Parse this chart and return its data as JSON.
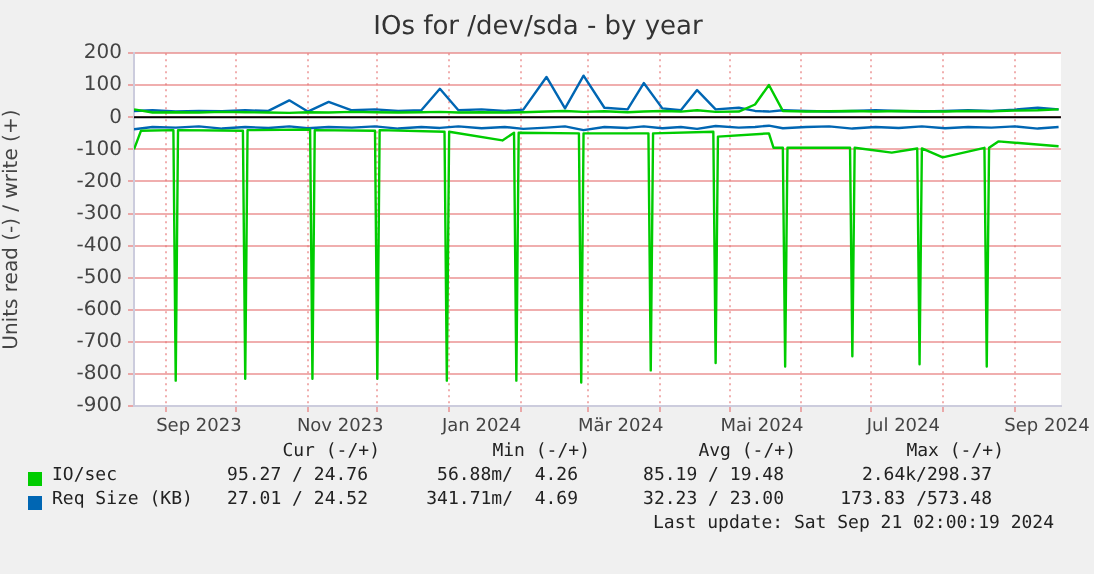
{
  "chart_data": {
    "type": "line",
    "title": "IOs for /dev/sda - by year",
    "ylabel": "Units read (-) / write (+)",
    "x": [
      "2023-08-18",
      "2023-08-26",
      "2023-09-05",
      "2023-09-15",
      "2023-09-25",
      "2023-10-05",
      "2023-10-15",
      "2023-10-24",
      "2023-11-01",
      "2023-11-10",
      "2023-11-20",
      "2023-11-30",
      "2023-12-10",
      "2023-12-20",
      "2023-12-28",
      "2024-01-05",
      "2024-01-15",
      "2024-01-25",
      "2024-02-02",
      "2024-02-12",
      "2024-02-20",
      "2024-02-28",
      "2024-03-08",
      "2024-03-18",
      "2024-03-25",
      "2024-04-02",
      "2024-04-10",
      "2024-04-17",
      "2024-04-25",
      "2024-05-05",
      "2024-05-12",
      "2024-05-18",
      "2024-05-24",
      "2024-06-03",
      "2024-06-13",
      "2024-06-23",
      "2024-07-03",
      "2024-07-13",
      "2024-07-23",
      "2024-08-02",
      "2024-08-12",
      "2024-08-22",
      "2024-09-01",
      "2024-09-11",
      "2024-09-20"
    ],
    "series": [
      {
        "name": "IO/sec",
        "color": "#00cc00",
        "values": [
          25,
          15,
          16,
          15,
          17,
          16,
          15,
          14,
          16,
          15,
          17,
          16,
          15,
          16,
          17,
          15,
          16,
          15,
          16,
          18,
          20,
          17,
          19,
          16,
          18,
          20,
          18,
          22,
          17,
          18,
          40,
          101,
          20,
          18,
          19,
          20,
          18,
          20,
          19,
          18,
          20,
          19,
          21,
          22,
          25
        ]
      },
      {
        "color": "#00cc00",
        "x": [
          "2023-08-18",
          "2023-08-21",
          "2023-09-04",
          "2023-09-05",
          "2023-09-06",
          "2023-10-04",
          "2023-10-05",
          "2023-10-06",
          "2023-11-02",
          "2023-11-03",
          "2023-11-04",
          "2023-11-30",
          "2023-12-01",
          "2023-12-02",
          "2023-12-30",
          "2023-12-31",
          "2024-01-01",
          "2024-01-24",
          "2024-01-29",
          "2024-01-30",
          "2024-01-31",
          "2024-02-26",
          "2024-02-27",
          "2024-02-28",
          "2024-03-27",
          "2024-03-28",
          "2024-03-29",
          "2024-04-24",
          "2024-04-25",
          "2024-04-26",
          "2024-05-18",
          "2024-05-20",
          "2024-05-24",
          "2024-05-25",
          "2024-05-26",
          "2024-06-22",
          "2024-06-23",
          "2024-06-24",
          "2024-07-10",
          "2024-07-21",
          "2024-07-22",
          "2024-07-23",
          "2024-08-01",
          "2024-08-19",
          "2024-08-20",
          "2024-08-21",
          "2024-08-25",
          "2024-09-20"
        ],
        "values": [
          -100,
          -42,
          -40,
          -821,
          -40,
          -42,
          -815,
          -40,
          -38,
          -815,
          -40,
          -42,
          -815,
          -40,
          -45,
          -821,
          -45,
          -72,
          -48,
          -821,
          -48,
          -50,
          -827,
          -50,
          -50,
          -789,
          -50,
          -45,
          -766,
          -60,
          -50,
          -95,
          -95,
          -777,
          -95,
          -95,
          -745,
          -95,
          -110,
          -97,
          -770,
          -97,
          -125,
          -95,
          -777,
          -95,
          -75,
          -90
        ]
      },
      {
        "name": "Req Size (KB)",
        "color": "#0066b3",
        "values": [
          20,
          22,
          18,
          20,
          19,
          22,
          20,
          53,
          18,
          48,
          22,
          25,
          20,
          22,
          89,
          22,
          25,
          20,
          24,
          126,
          28,
          130,
          30,
          25,
          107,
          28,
          22,
          85,
          25,
          30,
          20,
          18,
          22,
          20,
          18,
          20,
          22,
          20,
          18,
          20,
          22,
          20,
          24,
          30,
          25
        ]
      },
      {
        "color": "#0066b3",
        "values": [
          -37,
          -30,
          -32,
          -28,
          -35,
          -30,
          -33,
          -28,
          -34,
          -30,
          -32,
          -28,
          -35,
          -30,
          -33,
          -28,
          -34,
          -30,
          -36,
          -32,
          -28,
          -40,
          -30,
          -33,
          -28,
          -34,
          -30,
          -36,
          -27,
          -32,
          -30,
          -26,
          -34,
          -30,
          -28,
          -35,
          -30,
          -33,
          -28,
          -34,
          -30,
          -32,
          -28,
          -35,
          -30
        ]
      }
    ],
    "xlim": [
      "2023-08-18",
      "2024-09-21"
    ],
    "xticks": [
      {
        "value": "2023-09-01",
        "label": null
      },
      {
        "value": "2023-09-15",
        "label": "Sep 2023"
      },
      {
        "value": "2023-10-01",
        "label": null
      },
      {
        "value": "2023-11-01",
        "label": null
      },
      {
        "value": "2023-11-15",
        "label": "Nov 2023"
      },
      {
        "value": "2023-12-01",
        "label": null
      },
      {
        "value": "2024-01-01",
        "label": null
      },
      {
        "value": "2024-01-15",
        "label": "Jan 2024"
      },
      {
        "value": "2024-02-01",
        "label": null
      },
      {
        "value": "2024-03-01",
        "label": null
      },
      {
        "value": "2024-03-15",
        "label": "Mär 2024"
      },
      {
        "value": "2024-04-01",
        "label": null
      },
      {
        "value": "2024-05-01",
        "label": null
      },
      {
        "value": "2024-05-15",
        "label": "Mai 2024"
      },
      {
        "value": "2024-06-01",
        "label": null
      },
      {
        "value": "2024-07-01",
        "label": null
      },
      {
        "value": "2024-07-15",
        "label": "Jul 2024"
      },
      {
        "value": "2024-08-01",
        "label": null
      },
      {
        "value": "2024-09-01",
        "label": null
      },
      {
        "value": "2024-09-15",
        "label": "Sep 2024"
      }
    ],
    "ylim": [
      -900,
      200
    ],
    "yticks": [
      -900,
      -800,
      -700,
      -600,
      -500,
      -400,
      -300,
      -200,
      -100,
      0,
      100,
      200
    ],
    "ref_lines": [
      {
        "axis": "y",
        "value": 0,
        "color": "#000000"
      }
    ],
    "grid": true,
    "legend": "bottom",
    "marker": "none",
    "line_style": "solid",
    "annotations": [
      "Cur (-/+)",
      "Min (-/+)",
      "Avg (-/+)",
      "Max (-/+)",
      "95.27 / 24.76",
      "56.88m/  4.26",
      "85.19 / 19.48",
      "2.64k/298.37",
      "27.01 / 24.52",
      "341.71m/  4.69",
      "32.23 / 23.00",
      "173.83 /573.48",
      "Last update: Sat Sep 21 02:00:19 2024"
    ]
  }
}
